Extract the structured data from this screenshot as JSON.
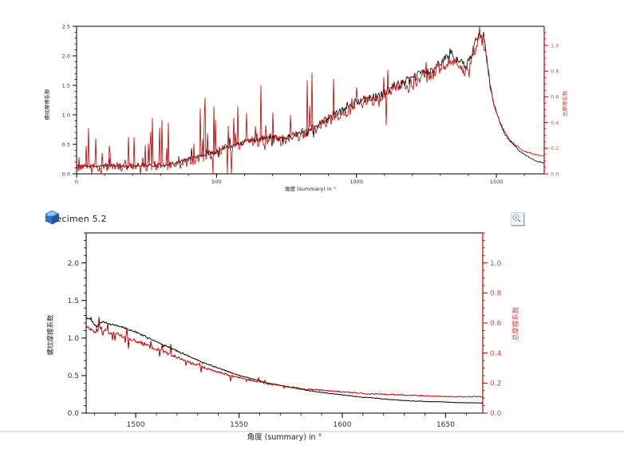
{
  "header": {
    "title": "Specimen 5.2",
    "icon": "blue-cube-icon"
  },
  "toolbar": {
    "zoom_button_icon": "magnifier-plus-icon"
  },
  "colors": {
    "series_black": "#000000",
    "series_red": "#c00000",
    "axis_black": "#000000",
    "axis_red": "#c00000",
    "red_tick_text": "#d24a4a",
    "black_tick_text": "#333333",
    "divider_grey": "#d9d9d9",
    "cube_blue_top": "#7fb2e5",
    "cube_blue_left": "#2e75c3",
    "cube_blue_right": "#1b5ba6"
  },
  "chart_data": [
    {
      "id": "top",
      "type": "line",
      "title": "",
      "xlabel": "角度 (summary) in °",
      "ylabel_left": "螺纹摩擦系数",
      "ylabel_right": "总摩擦系数",
      "grid": false,
      "legend": "none",
      "x": {
        "min": 0,
        "max": 1671,
        "majors": [
          0,
          500,
          1000,
          1500
        ],
        "minor_step": 100,
        "decimals": 0
      },
      "y_left": {
        "min": 0,
        "max": 2.5,
        "majors": [
          0.0,
          0.5,
          1.0,
          1.5,
          2.0,
          2.5
        ],
        "minor_step": 0.1,
        "decimals": 1
      },
      "y_right": {
        "min": 0,
        "max": 1.149,
        "majors": [
          0.0,
          0.2,
          0.4,
          0.6,
          0.8,
          1.0
        ],
        "minor_step": 0.05,
        "decimals": 1
      },
      "series": [
        {
          "name": "螺纹摩擦系数",
          "color": "#000000",
          "axis": "left",
          "width": 0.8,
          "seed": 11,
          "up_bias": 0.6,
          "anchors": [
            [
              0,
              0.14
            ],
            [
              50,
              0.13
            ],
            [
              100,
              0.135
            ],
            [
              150,
              0.13
            ],
            [
              200,
              0.14
            ],
            [
              250,
              0.145
            ],
            [
              300,
              0.15
            ],
            [
              350,
              0.18
            ],
            [
              380,
              0.22
            ],
            [
              420,
              0.28
            ],
            [
              460,
              0.33
            ],
            [
              500,
              0.38
            ],
            [
              540,
              0.45
            ],
            [
              580,
              0.52
            ],
            [
              620,
              0.56
            ],
            [
              660,
              0.6
            ],
            [
              700,
              0.62
            ],
            [
              740,
              0.6
            ],
            [
              780,
              0.65
            ],
            [
              820,
              0.75
            ],
            [
              860,
              0.82
            ],
            [
              900,
              0.95
            ],
            [
              940,
              1.05
            ],
            [
              960,
              1.1
            ],
            [
              1000,
              1.22
            ],
            [
              1040,
              1.3
            ],
            [
              1080,
              1.3
            ],
            [
              1120,
              1.45
            ],
            [
              1160,
              1.55
            ],
            [
              1200,
              1.6
            ],
            [
              1240,
              1.75
            ],
            [
              1260,
              1.7
            ],
            [
              1300,
              1.9
            ],
            [
              1320,
              1.95
            ],
            [
              1340,
              2.05
            ],
            [
              1360,
              1.95
            ],
            [
              1390,
              1.8
            ],
            [
              1410,
              2.0
            ],
            [
              1440,
              2.45
            ],
            [
              1455,
              2.35
            ],
            [
              1465,
              2.0
            ],
            [
              1475,
              1.6
            ],
            [
              1490,
              1.2
            ],
            [
              1510,
              0.9
            ],
            [
              1530,
              0.68
            ],
            [
              1550,
              0.55
            ],
            [
              1570,
              0.45
            ],
            [
              1590,
              0.36
            ],
            [
              1610,
              0.3
            ],
            [
              1640,
              0.22
            ],
            [
              1671,
              0.18
            ]
          ],
          "noise": [
            [
              0,
              0.025
            ],
            [
              400,
              0.03
            ],
            [
              700,
              0.05
            ],
            [
              1000,
              0.07
            ],
            [
              1300,
              0.08
            ],
            [
              1450,
              0.07
            ],
            [
              1500,
              0.02
            ],
            [
              1671,
              0.006
            ]
          ],
          "spike_prob": [
            [
              0,
              0.04
            ],
            [
              1000,
              0.06
            ],
            [
              1470,
              0.02
            ],
            [
              1480,
              0
            ],
            [
              1671,
              0
            ]
          ],
          "spike_amp": [
            [
              0,
              0.1
            ],
            [
              1000,
              0.15
            ],
            [
              1480,
              0.02
            ],
            [
              1671,
              0
            ]
          ]
        },
        {
          "name": "总摩擦系数",
          "color": "#c00000",
          "axis": "right",
          "width": 0.8,
          "seed": 99,
          "up_bias": 0.72,
          "anchors": [
            [
              0,
              0.055
            ],
            [
              100,
              0.055
            ],
            [
              200,
              0.055
            ],
            [
              300,
              0.06
            ],
            [
              350,
              0.065
            ],
            [
              380,
              0.08
            ],
            [
              420,
              0.11
            ],
            [
              460,
              0.14
            ],
            [
              500,
              0.165
            ],
            [
              540,
              0.2
            ],
            [
              580,
              0.23
            ],
            [
              620,
              0.25
            ],
            [
              660,
              0.26
            ],
            [
              700,
              0.27
            ],
            [
              740,
              0.26
            ],
            [
              780,
              0.285
            ],
            [
              820,
              0.33
            ],
            [
              860,
              0.36
            ],
            [
              900,
              0.42
            ],
            [
              940,
              0.46
            ],
            [
              960,
              0.48
            ],
            [
              1000,
              0.54
            ],
            [
              1040,
              0.57
            ],
            [
              1080,
              0.57
            ],
            [
              1120,
              0.64
            ],
            [
              1160,
              0.68
            ],
            [
              1200,
              0.7
            ],
            [
              1240,
              0.77
            ],
            [
              1260,
              0.75
            ],
            [
              1300,
              0.84
            ],
            [
              1320,
              0.86
            ],
            [
              1340,
              0.9
            ],
            [
              1360,
              0.86
            ],
            [
              1390,
              0.79
            ],
            [
              1410,
              0.88
            ],
            [
              1440,
              1.06
            ],
            [
              1455,
              1.02
            ],
            [
              1465,
              0.88
            ],
            [
              1475,
              0.72
            ],
            [
              1490,
              0.55
            ],
            [
              1510,
              0.42
            ],
            [
              1530,
              0.32
            ],
            [
              1550,
              0.26
            ],
            [
              1570,
              0.22
            ],
            [
              1590,
              0.19
            ],
            [
              1610,
              0.17
            ],
            [
              1640,
              0.15
            ],
            [
              1671,
              0.14
            ]
          ],
          "noise": [
            [
              0,
              0.035
            ],
            [
              400,
              0.04
            ],
            [
              700,
              0.045
            ],
            [
              1000,
              0.05
            ],
            [
              1300,
              0.055
            ],
            [
              1450,
              0.05
            ],
            [
              1500,
              0.01
            ],
            [
              1671,
              0.004
            ]
          ],
          "spike_prob": [
            [
              0,
              0.22
            ],
            [
              500,
              0.25
            ],
            [
              800,
              0.12
            ],
            [
              1200,
              0.1
            ],
            [
              1460,
              0.05
            ],
            [
              1480,
              0
            ],
            [
              1671,
              0
            ]
          ],
          "spike_amp": [
            [
              0,
              0.2
            ],
            [
              400,
              0.28
            ],
            [
              700,
              0.3
            ],
            [
              1000,
              0.2
            ],
            [
              1300,
              0.15
            ],
            [
              1480,
              0.02
            ],
            [
              1671,
              0
            ]
          ]
        }
      ]
    },
    {
      "id": "bottom",
      "type": "line",
      "title": "Specimen 5.2",
      "xlabel": "角度 (summary) in °",
      "ylabel_left": "螺纹摩擦系数",
      "ylabel_right": "总摩擦系数",
      "grid": false,
      "legend": "none",
      "x": {
        "min": 1476,
        "max": 1668,
        "majors": [
          1500,
          1550,
          1600,
          1650
        ],
        "minor_step": 10,
        "decimals": 0
      },
      "y_left": {
        "min": 0,
        "max": 2.4,
        "majors": [
          0.0,
          0.5,
          1.0,
          1.5,
          2.0
        ],
        "minor_step": 0.1,
        "decimals": 1
      },
      "y_right": {
        "min": 0,
        "max": 1.2,
        "majors": [
          0.0,
          0.2,
          0.4,
          0.6,
          0.8,
          1.0
        ],
        "minor_step": 0.05,
        "decimals": 1
      },
      "series": [
        {
          "name": "螺纹摩擦系数",
          "color": "#000000",
          "axis": "left",
          "width": 1.0,
          "seed": 5,
          "up_bias": 0.5,
          "anchors": [
            [
              1476,
              1.28
            ],
            [
              1479,
              1.22
            ],
            [
              1481,
              1.15
            ],
            [
              1484,
              1.22
            ],
            [
              1488,
              1.18
            ],
            [
              1492,
              1.16
            ],
            [
              1496,
              1.12
            ],
            [
              1500,
              1.08
            ],
            [
              1504,
              1.03
            ],
            [
              1508,
              0.98
            ],
            [
              1512,
              0.93
            ],
            [
              1516,
              0.88
            ],
            [
              1520,
              0.83
            ],
            [
              1524,
              0.78
            ],
            [
              1528,
              0.73
            ],
            [
              1532,
              0.68
            ],
            [
              1536,
              0.64
            ],
            [
              1540,
              0.6
            ],
            [
              1544,
              0.56
            ],
            [
              1548,
              0.52
            ],
            [
              1552,
              0.49
            ],
            [
              1556,
              0.46
            ],
            [
              1560,
              0.43
            ],
            [
              1564,
              0.4
            ],
            [
              1568,
              0.38
            ],
            [
              1572,
              0.36
            ],
            [
              1576,
              0.34
            ],
            [
              1580,
              0.32
            ],
            [
              1586,
              0.29
            ],
            [
              1592,
              0.27
            ],
            [
              1598,
              0.25
            ],
            [
              1604,
              0.23
            ],
            [
              1610,
              0.21
            ],
            [
              1616,
              0.2
            ],
            [
              1624,
              0.18
            ],
            [
              1632,
              0.165
            ],
            [
              1640,
              0.155
            ],
            [
              1648,
              0.15
            ],
            [
              1656,
              0.14
            ],
            [
              1668,
              0.135
            ]
          ],
          "noise": [
            [
              1476,
              0.012
            ],
            [
              1520,
              0.008
            ],
            [
              1560,
              0.005
            ],
            [
              1668,
              0.003
            ]
          ],
          "spike_prob": [
            [
              1476,
              0.05
            ],
            [
              1540,
              0.02
            ],
            [
              1560,
              0
            ],
            [
              1668,
              0
            ]
          ],
          "spike_amp": [
            [
              1476,
              0.04
            ],
            [
              1560,
              0.01
            ],
            [
              1668,
              0
            ]
          ]
        },
        {
          "name": "总摩擦系数",
          "color": "#c00000",
          "axis": "right",
          "width": 1.0,
          "seed": 17,
          "up_bias": 0.7,
          "anchors": [
            [
              1476,
              0.58
            ],
            [
              1480,
              0.54
            ],
            [
              1483,
              0.57
            ],
            [
              1487,
              0.54
            ],
            [
              1492,
              0.52
            ],
            [
              1497,
              0.5
            ],
            [
              1502,
              0.47
            ],
            [
              1507,
              0.44
            ],
            [
              1512,
              0.42
            ],
            [
              1517,
              0.39
            ],
            [
              1522,
              0.36
            ],
            [
              1527,
              0.33
            ],
            [
              1532,
              0.31
            ],
            [
              1537,
              0.285
            ],
            [
              1542,
              0.265
            ],
            [
              1547,
              0.245
            ],
            [
              1552,
              0.23
            ],
            [
              1557,
              0.215
            ],
            [
              1562,
              0.2
            ],
            [
              1567,
              0.19
            ],
            [
              1572,
              0.18
            ],
            [
              1577,
              0.17
            ],
            [
              1582,
              0.16
            ],
            [
              1592,
              0.15
            ],
            [
              1602,
              0.14
            ],
            [
              1612,
              0.13
            ],
            [
              1622,
              0.125
            ],
            [
              1632,
              0.12
            ],
            [
              1642,
              0.115
            ],
            [
              1652,
              0.11
            ],
            [
              1668,
              0.11
            ]
          ],
          "noise": [
            [
              1476,
              0.014
            ],
            [
              1520,
              0.01
            ],
            [
              1560,
              0.005
            ],
            [
              1668,
              0.003
            ]
          ],
          "spike_prob": [
            [
              1476,
              0.18
            ],
            [
              1540,
              0.08
            ],
            [
              1570,
              0.02
            ],
            [
              1668,
              0
            ]
          ],
          "spike_amp": [
            [
              1476,
              0.055
            ],
            [
              1540,
              0.03
            ],
            [
              1668,
              0.01
            ]
          ]
        }
      ]
    }
  ]
}
